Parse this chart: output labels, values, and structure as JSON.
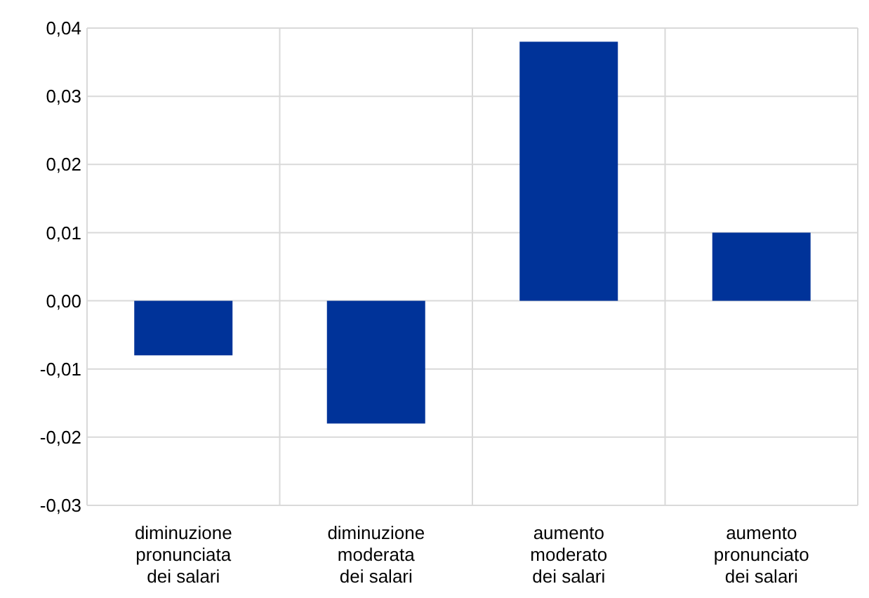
{
  "chart_data": {
    "type": "bar",
    "categories": [
      "diminuzione pronunciata dei salari",
      "diminuzione moderata dei salari",
      "aumento moderato dei salari",
      "aumento pronunciato dei salari"
    ],
    "values": [
      -0.008,
      -0.018,
      0.038,
      0.01
    ],
    "color": "#003399",
    "ylim": [
      -0.03,
      0.04
    ],
    "yticks": [
      {
        "value": -0.03,
        "label": "-0,03"
      },
      {
        "value": -0.02,
        "label": "-0,02"
      },
      {
        "value": -0.01,
        "label": "-0,01"
      },
      {
        "value": 0,
        "label": "0,00"
      },
      {
        "value": 0.01,
        "label": "0,01"
      },
      {
        "value": 0.02,
        "label": "0,02"
      },
      {
        "value": 0.03,
        "label": "0,03"
      },
      {
        "value": 0.04,
        "label": "0,04"
      }
    ],
    "grid": true
  }
}
